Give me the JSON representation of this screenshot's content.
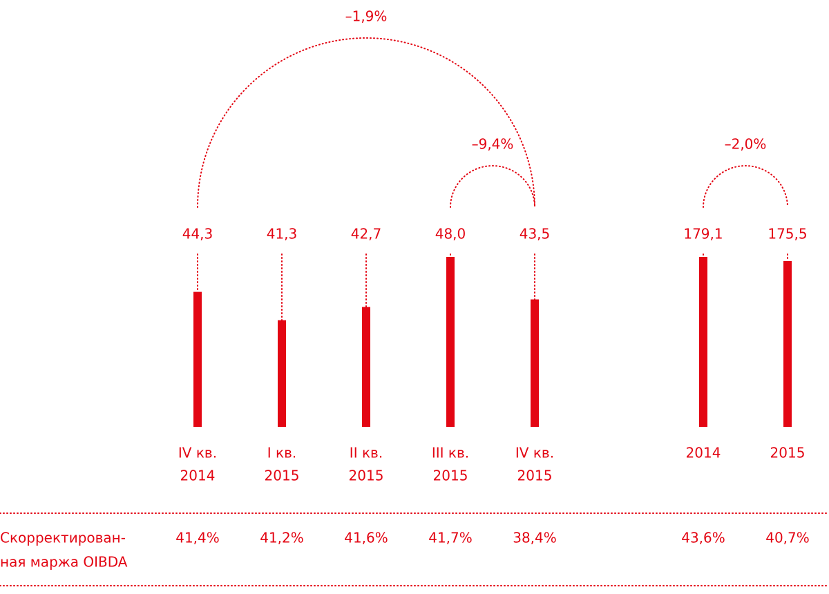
{
  "chart_data": [
    {
      "type": "bar",
      "categories": [
        [
          "IV кв.",
          "2014"
        ],
        [
          "I кв.",
          "2015"
        ],
        [
          "II кв.",
          "2015"
        ],
        [
          "III кв.",
          "2015"
        ],
        [
          "IV кв.",
          "2015"
        ]
      ],
      "values": [
        44.3,
        41.3,
        42.7,
        48.0,
        43.5
      ],
      "value_labels": [
        "44,3",
        "41,3",
        "42,7",
        "48,0",
        "43,5"
      ],
      "color": "#e30613",
      "ylim": [
        30,
        48
      ],
      "annotations": [
        {
          "text": "–1,9%",
          "from": 0,
          "to": 4
        },
        {
          "text": "–9,4%",
          "from": 3,
          "to": 4
        }
      ]
    },
    {
      "type": "bar",
      "categories": [
        [
          "2014"
        ],
        [
          "2015"
        ]
      ],
      "values": [
        179.1,
        175.5
      ],
      "value_labels": [
        "179,1",
        "175,5"
      ],
      "color": "#e30613",
      "ylim": [
        31,
        179.1
      ],
      "annotations": [
        {
          "text": "–2,0%",
          "from": 0,
          "to": 1
        }
      ]
    }
  ],
  "margin": {
    "label": [
      "Скорректирован-",
      "ная маржа OIBDA"
    ],
    "values": [
      41.4,
      41.2,
      41.6,
      41.7,
      38.4,
      43.6,
      40.7
    ],
    "value_labels": [
      "41,4%",
      "41,2%",
      "41,6%",
      "41,7%",
      "38,4%",
      "43,6%",
      "40,7%"
    ]
  }
}
